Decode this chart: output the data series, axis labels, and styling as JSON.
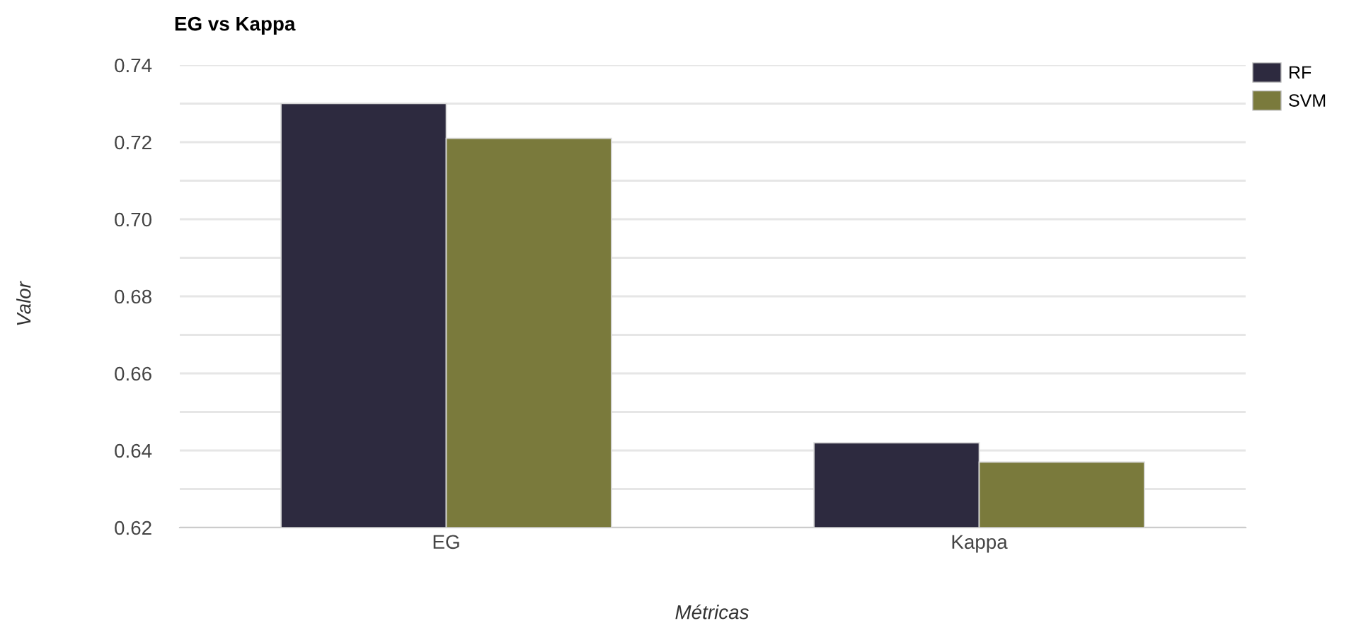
{
  "chart_data": {
    "type": "bar",
    "title": "EG vs Kappa",
    "xlabel": "Métricas",
    "ylabel": "Valor",
    "categories": [
      "EG",
      "Kappa"
    ],
    "series": [
      {
        "name": "RF",
        "color": "#2d2a3f",
        "values": [
          0.73,
          0.642
        ]
      },
      {
        "name": "SVM",
        "color": "#7a7a3c",
        "values": [
          0.721,
          0.637
        ]
      }
    ],
    "ylim": [
      0.62,
      0.74
    ],
    "yticks": [
      {
        "value": 0.62,
        "label": "0.62"
      },
      {
        "value": 0.63,
        "label": null
      },
      {
        "value": 0.64,
        "label": "0.64"
      },
      {
        "value": 0.65,
        "label": null
      },
      {
        "value": 0.66,
        "label": "0.66"
      },
      {
        "value": 0.67,
        "label": null
      },
      {
        "value": 0.68,
        "label": "0.68"
      },
      {
        "value": 0.69,
        "label": null
      },
      {
        "value": 0.7,
        "label": "0.70"
      },
      {
        "value": 0.71,
        "label": null
      },
      {
        "value": 0.72,
        "label": "0.72"
      },
      {
        "value": 0.73,
        "label": null
      },
      {
        "value": 0.74,
        "label": "0.74"
      }
    ],
    "grid": "y",
    "legend": "top right"
  }
}
